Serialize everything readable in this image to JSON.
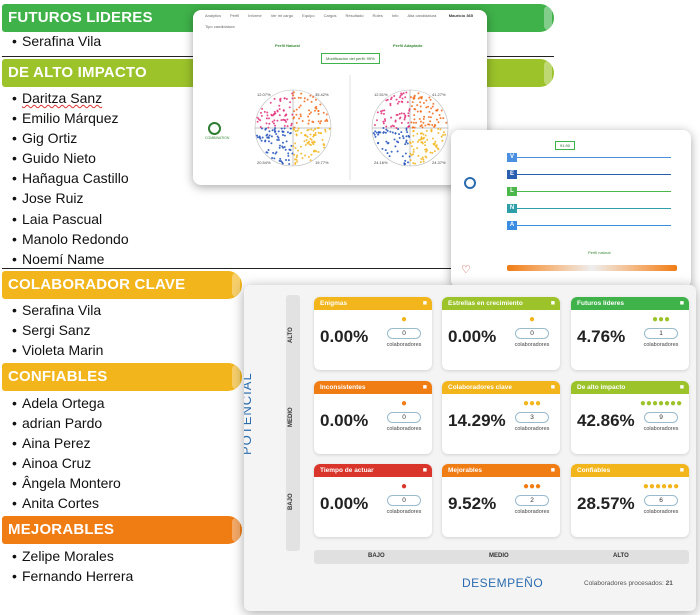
{
  "categories": [
    {
      "title": "FUTUROS LIDERES",
      "color": "#3fb24a",
      "people": [
        "Serafina Vila"
      ]
    },
    {
      "title": "DE ALTO IMPACTO",
      "color": "#9cc32a",
      "people": [
        "Daritza Sanz",
        "Emilio Márquez",
        "Gig Ortiz",
        "Guido Nieto",
        "Hañagua Castillo",
        "Jose Ruiz",
        "Laia Pascual",
        "Manolo Redondo",
        "Noemí Name"
      ]
    },
    {
      "title": "COLABORADOR CLAVE",
      "color": "#f2b51c",
      "people": [
        "Serafina Vila",
        "Sergi Sanz",
        "Violeta Marin"
      ]
    },
    {
      "title": "CONFIABLES",
      "color": "#f2b51c",
      "people": [
        "Adela Ortega",
        "adrian Pardo",
        "Aina Perez",
        "Ainoa Cruz",
        "Ângela Montero",
        "Anita Cortes"
      ]
    },
    {
      "title": "MEJORABLES",
      "color": "#f07c14",
      "people": [
        "Zelipe Morales",
        "Fernando Herrera"
      ]
    }
  ],
  "profile_shot": {
    "menu": [
      "Analytics",
      "Perfil",
      "Informe",
      "Ver mi cargo",
      "Equipo",
      "Cargos",
      "Resultado",
      "Roles",
      "Info",
      "Alta candidatura"
    ],
    "user": "Mauricio 365",
    "filter": "Tipo candidatura",
    "natural_title": "Perfil Natural",
    "adapted_title": "Perfil Adaptado",
    "modification": "Modificación del perfil: 95%",
    "natural_pcts": [
      "12.07%",
      "35.42%",
      "20.54%",
      "19.77%"
    ],
    "adapted_pcts": [
      "12.51%",
      "41.27%",
      "24.16%",
      "24.37%"
    ],
    "left_label": "COMBINATION"
  },
  "bars_shot": {
    "top_tag": "91.90",
    "letters": [
      "V",
      "E",
      "L",
      "N",
      "A"
    ],
    "letter_colors": [
      "#4a8fe0",
      "#2a5fb0",
      "#4cb84c",
      "#2e9ea8",
      "#3a8de0"
    ],
    "bottom_label": "Perfil natural"
  },
  "ninebox": {
    "potential_label": "POTENCIAL",
    "performance_label": "DESEMPEÑO",
    "row_labels": [
      "ALTO",
      "MEDIO",
      "BAJO"
    ],
    "col_labels": [
      "BAJO",
      "MEDIO",
      "ALTO"
    ],
    "processed_text": "Colaboradores procesados:",
    "processed_count": "21",
    "sub_label": "colaboradores",
    "boxes": [
      {
        "title": "Enigmas",
        "color": "#f2b51c",
        "pct": "0.00%",
        "count": "0",
        "icon_color": "#f2b51c",
        "people": 1
      },
      {
        "title": "Estrellas en crecimiento",
        "color": "#9cc32a",
        "pct": "0.00%",
        "count": "0",
        "icon_color": "#f2b51c",
        "people": 1
      },
      {
        "title": "Futuros líderes",
        "color": "#3fb24a",
        "pct": "4.76%",
        "count": "1",
        "icon_color": "#9cc32a",
        "people": 3
      },
      {
        "title": "Inconsistentes",
        "color": "#f07c14",
        "pct": "0.00%",
        "count": "0",
        "icon_color": "#f07c14",
        "people": 1
      },
      {
        "title": "Colaboradores clave",
        "color": "#f2b51c",
        "pct": "14.29%",
        "count": "3",
        "icon_color": "#f2b51c",
        "people": 3
      },
      {
        "title": "De alto impacto",
        "color": "#9cc32a",
        "pct": "42.86%",
        "count": "9",
        "icon_color": "#9cc32a",
        "people": 7
      },
      {
        "title": "Tiempo de actuar",
        "color": "#d9352a",
        "pct": "0.00%",
        "count": "0",
        "icon_color": "#d9352a",
        "people": 1
      },
      {
        "title": "Mejorables",
        "color": "#f07c14",
        "pct": "9.52%",
        "count": "2",
        "icon_color": "#f07c14",
        "people": 3
      },
      {
        "title": "Confiables",
        "color": "#f2b51c",
        "pct": "28.57%",
        "count": "6",
        "icon_color": "#f2b51c",
        "people": 6
      }
    ]
  }
}
